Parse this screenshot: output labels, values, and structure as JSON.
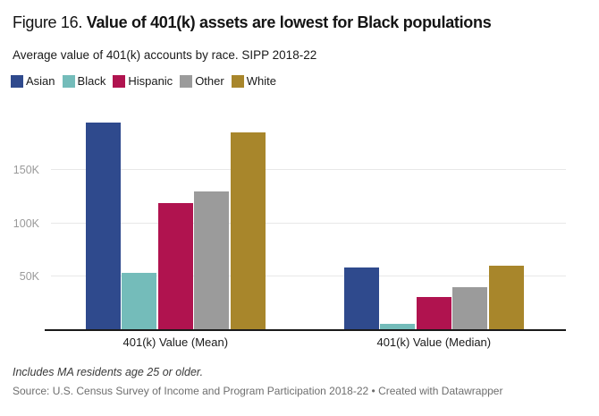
{
  "header": {
    "figure_label": "Figure 16.",
    "title_bold": " Value of 401(k) assets are lowest for Black populations",
    "subtitle": "Average value of 401(k) accounts by race. SIPP 2018-22"
  },
  "chart_data": {
    "type": "bar",
    "title": "Figure 16. Value of 401(k) assets are lowest for Black populations",
    "subtitle": "Average value of 401(k) accounts by race. SIPP 2018-22",
    "categories": [
      "401(k) Value (Mean)",
      "401(k) Value (Median)"
    ],
    "series": [
      {
        "name": "Asian",
        "color": "#2f4a8d",
        "values": [
          195000,
          58000
        ]
      },
      {
        "name": "Black",
        "color": "#74bcba",
        "values": [
          53000,
          5000
        ]
      },
      {
        "name": "Hispanic",
        "color": "#b0134f",
        "values": [
          119000,
          30000
        ]
      },
      {
        "name": "Other",
        "color": "#9b9b9b",
        "values": [
          130000,
          40000
        ]
      },
      {
        "name": "White",
        "color": "#a8862b",
        "values": [
          186000,
          60000
        ]
      }
    ],
    "xlabel": "",
    "ylabel": "",
    "ylim": [
      0,
      212000
    ],
    "yticks": [
      {
        "value": 50000,
        "label": "50K"
      },
      {
        "value": 100000,
        "label": "100K"
      },
      {
        "value": 150000,
        "label": "150K"
      }
    ],
    "grid": "horizontal",
    "legend_position": "top-left"
  },
  "footer": {
    "note": "Includes MA residents age 25 or older.",
    "source": "Source: U.S. Census Survey of Income and Program Participation 2018-22",
    "separator": " • ",
    "attribution": "Created with Datawrapper"
  },
  "colors": {
    "axis_line": "#1a1a1a",
    "gridline": "#e8e8e8",
    "tick_label": "#9a9a9a",
    "text": "#1a1a1a",
    "muted_text": "#6e6e6e"
  }
}
